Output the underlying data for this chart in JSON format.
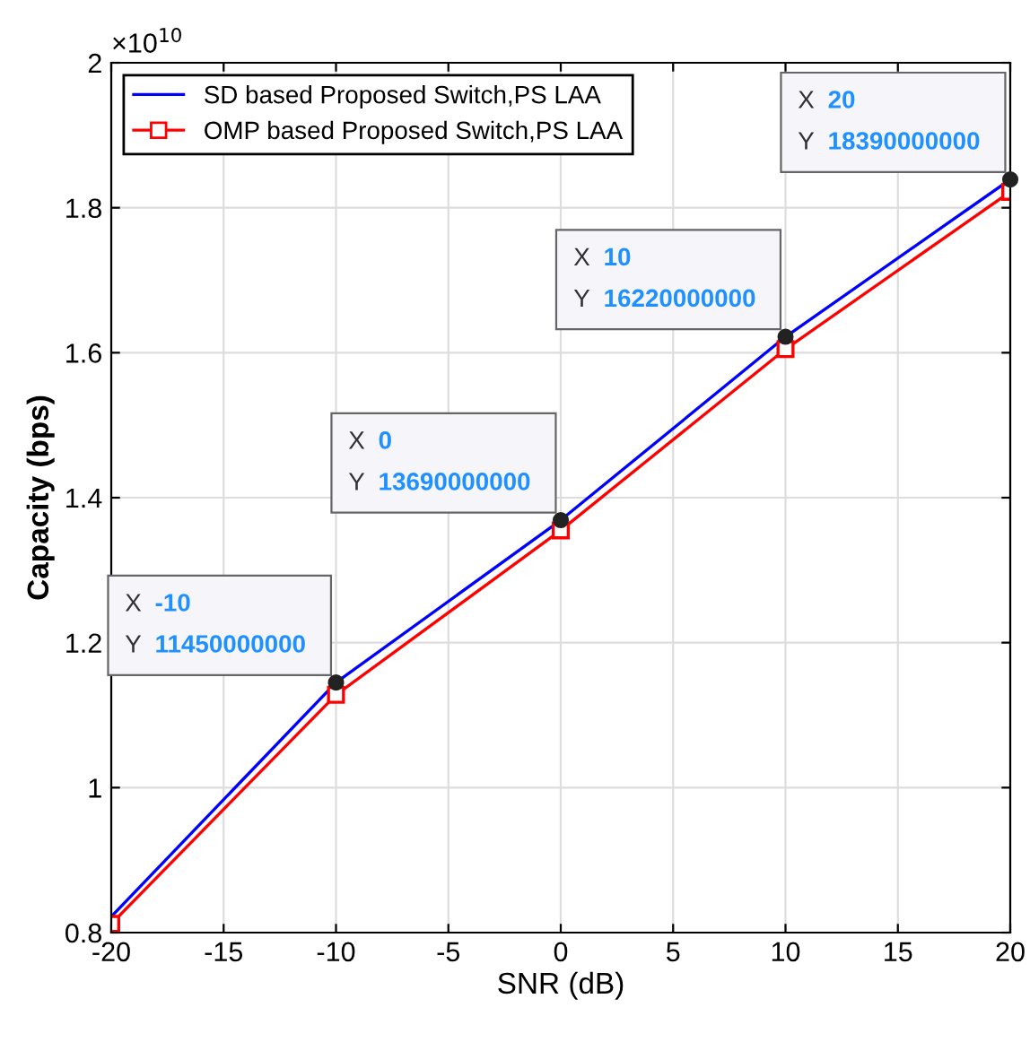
{
  "chart_data": {
    "type": "line",
    "xlabel": "SNR (dB)",
    "ylabel": "Capacity (bps)",
    "x": [
      -20,
      -10,
      0,
      10,
      20
    ],
    "series": [
      {
        "name": "SD based Proposed Switch,PS LAA",
        "color": "#0000ff",
        "marker": "circle",
        "values": [
          0.822,
          1.145,
          1.369,
          1.622,
          1.839
        ]
      },
      {
        "name": "OMP based Proposed Switch,PS LAA",
        "color": "#ff0000",
        "marker": "square",
        "values": [
          0.812,
          1.128,
          1.355,
          1.605,
          1.822
        ]
      }
    ],
    "xlim": [
      -20,
      20
    ],
    "xticks": [
      -20,
      -15,
      -10,
      -5,
      0,
      5,
      10,
      15,
      20
    ],
    "ylim": [
      0.8,
      2
    ],
    "yticks": [
      0.8,
      1,
      1.2,
      1.4,
      1.6,
      1.8,
      2
    ],
    "annotations": [
      "×10$^{10}$",
      {
        "text": "X -10\nY 11450000000",
        "x": -10,
        "y": 1.145
      },
      {
        "text": "X 0\nY 13690000000",
        "x": 0,
        "y": 1.369
      },
      {
        "text": "X 10\nY 16220000000",
        "x": 10,
        "y": 1.622
      },
      {
        "text": "X 20\nY 18390000000",
        "x": 20,
        "y": 1.839
      }
    ],
    "grid": true,
    "legend": "top left"
  }
}
